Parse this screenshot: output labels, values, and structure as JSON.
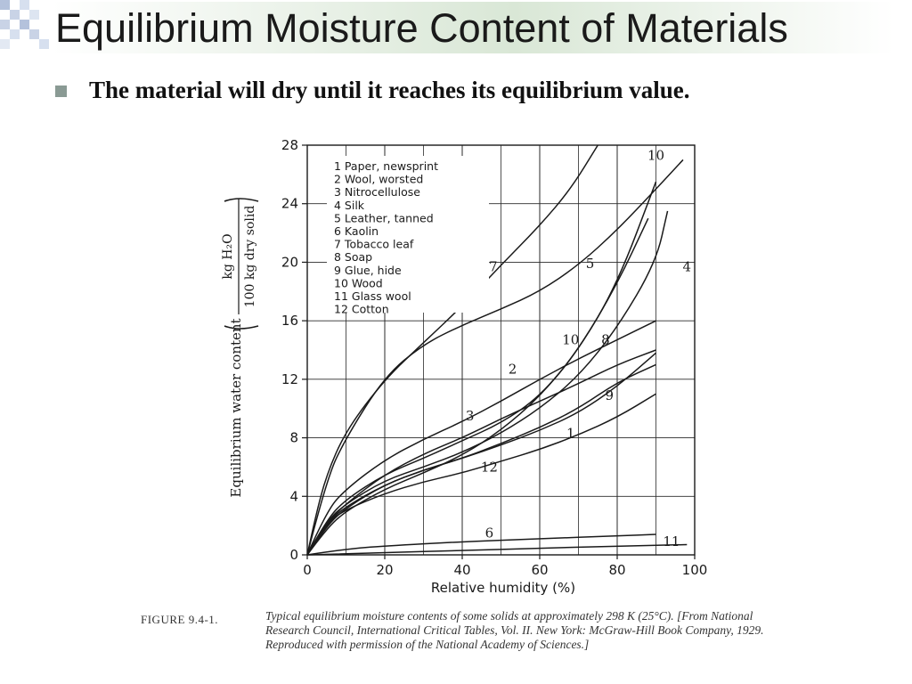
{
  "slide": {
    "title": "Equilibrium Moisture Content of Materials",
    "bullet": "The material will dry until it reaches its equilibrium value."
  },
  "caption": {
    "label": "FIGURE 9.4-1.",
    "text": "Typical equilibrium moisture contents of some solids at approximately 298 K (25°C). [From National Research Council, International Critical Tables, Vol. II. New York: McGraw-Hill Book Company, 1929. Reproduced with permission of the National Academy of Sciences.]"
  },
  "colors": {
    "ink": "#1a1a1a",
    "accent": "#8a9a94",
    "deco": "#b4c2dc"
  },
  "chart_data": {
    "type": "line",
    "xlabel": "Relative humidity (%)",
    "ylabel": "Equilibrium water content",
    "ylabel_unit_num": "kg H₂O",
    "ylabel_unit_den": "100 kg dry solid",
    "xlim": [
      0,
      100
    ],
    "ylim": [
      0,
      28
    ],
    "xticks": [
      0,
      20,
      40,
      60,
      80,
      100
    ],
    "yticks": [
      0,
      4,
      8,
      12,
      16,
      20,
      24,
      28
    ],
    "grid": true,
    "legend": [
      "1  Paper, newsprint",
      "2  Wool, worsted",
      "3  Nitrocellulose",
      "4  Silk",
      "5  Leather, tanned",
      "6  Kaolin",
      "7  Tobacco leaf",
      "8  Soap",
      "9  Glue, hide",
      "10  Wood",
      "11  Glass wool",
      "12  Cotton"
    ],
    "series": [
      {
        "name": "1",
        "label": "1",
        "label_at": [
          68,
          8.0
        ],
        "points": [
          [
            0,
            0
          ],
          [
            5,
            2.2
          ],
          [
            10,
            3.1
          ],
          [
            20,
            4.2
          ],
          [
            30,
            5.0
          ],
          [
            40,
            5.6
          ],
          [
            50,
            6.4
          ],
          [
            60,
            7.2
          ],
          [
            70,
            8.2
          ],
          [
            80,
            9.4
          ],
          [
            90,
            11.0
          ]
        ]
      },
      {
        "name": "2",
        "label": "2",
        "label_at": [
          53,
          12.4
        ],
        "points": [
          [
            0,
            0
          ],
          [
            5,
            3.0
          ],
          [
            10,
            4.5
          ],
          [
            20,
            6.5
          ],
          [
            30,
            7.9
          ],
          [
            40,
            9.1
          ],
          [
            50,
            10.5
          ],
          [
            60,
            12.0
          ],
          [
            70,
            13.4
          ],
          [
            80,
            14.7
          ],
          [
            90,
            16.0
          ]
        ]
      },
      {
        "name": "3",
        "label": "3",
        "label_at": [
          42,
          9.2
        ],
        "points": [
          [
            0,
            0
          ],
          [
            5,
            2.2
          ],
          [
            10,
            3.5
          ],
          [
            20,
            5.5
          ],
          [
            30,
            6.9
          ],
          [
            40,
            8.0
          ],
          [
            50,
            9.3
          ],
          [
            60,
            10.5
          ],
          [
            70,
            11.7
          ],
          [
            80,
            13.0
          ],
          [
            90,
            14.0
          ]
        ]
      },
      {
        "name": "4",
        "label": "4",
        "label_at": [
          98,
          19.4
        ],
        "points": [
          [
            0,
            0
          ],
          [
            5,
            2.3
          ],
          [
            10,
            3.5
          ],
          [
            20,
            5.1
          ],
          [
            30,
            6.0
          ],
          [
            40,
            7.0
          ],
          [
            50,
            8.3
          ],
          [
            60,
            10.0
          ],
          [
            70,
            12.2
          ],
          [
            80,
            15.5
          ],
          [
            90,
            20.0
          ],
          [
            93,
            23.5
          ]
        ]
      },
      {
        "name": "5",
        "label": "5",
        "label_at": [
          73,
          19.6
        ],
        "points": [
          [
            0,
            0
          ],
          [
            5,
            5.2
          ],
          [
            10,
            8.0
          ],
          [
            20,
            12.2
          ],
          [
            30,
            14.4
          ],
          [
            40,
            15.7
          ],
          [
            50,
            16.8
          ],
          [
            60,
            18.0
          ],
          [
            70,
            19.8
          ],
          [
            80,
            22.2
          ],
          [
            90,
            25.0
          ],
          [
            97,
            27.0
          ]
        ]
      },
      {
        "name": "6",
        "label": "6",
        "label_at": [
          47,
          1.2
        ],
        "points": [
          [
            0,
            0
          ],
          [
            10,
            0.4
          ],
          [
            20,
            0.6
          ],
          [
            40,
            0.9
          ],
          [
            60,
            1.1
          ],
          [
            80,
            1.3
          ],
          [
            90,
            1.4
          ]
        ]
      },
      {
        "name": "7",
        "label": "7",
        "label_at": [
          48,
          19.4
        ],
        "points": [
          [
            0,
            0
          ],
          [
            2,
            2.5
          ],
          [
            5,
            5.5
          ],
          [
            10,
            8.5
          ],
          [
            20,
            12.0
          ],
          [
            30,
            14.5
          ],
          [
            40,
            17.0
          ],
          [
            50,
            19.8
          ],
          [
            60,
            22.5
          ],
          [
            68,
            25.0
          ],
          [
            75,
            28.0
          ]
        ]
      },
      {
        "name": "8",
        "label": "8",
        "label_at": [
          77,
          14.4
        ],
        "points": [
          [
            0,
            0
          ],
          [
            5,
            1.8
          ],
          [
            10,
            3.0
          ],
          [
            20,
            4.5
          ],
          [
            30,
            5.6
          ],
          [
            40,
            6.8
          ],
          [
            50,
            8.5
          ],
          [
            60,
            10.8
          ],
          [
            70,
            14.0
          ],
          [
            80,
            18.5
          ],
          [
            88,
            23.0
          ]
        ]
      },
      {
        "name": "9",
        "label": "9",
        "label_at": [
          78,
          10.6
        ],
        "points": [
          [
            0,
            0
          ],
          [
            5,
            2.0
          ],
          [
            10,
            3.2
          ],
          [
            20,
            4.8
          ],
          [
            30,
            5.8
          ],
          [
            40,
            6.6
          ],
          [
            50,
            7.5
          ],
          [
            60,
            8.5
          ],
          [
            70,
            9.7
          ],
          [
            80,
            11.5
          ],
          [
            90,
            13.8
          ]
        ]
      },
      {
        "name": "10",
        "label": "10",
        "label_at": [
          68,
          14.4
        ],
        "points": [
          [
            0,
            0
          ],
          [
            5,
            2.4
          ],
          [
            10,
            3.8
          ],
          [
            20,
            5.5
          ],
          [
            30,
            6.6
          ],
          [
            40,
            7.8
          ],
          [
            50,
            9.0
          ],
          [
            60,
            10.8
          ],
          [
            70,
            14.0
          ],
          [
            80,
            18.5
          ],
          [
            90,
            25.5
          ]
        ]
      },
      {
        "name": "11",
        "label": "11",
        "label_at": [
          94,
          0.6
        ],
        "points": [
          [
            0,
            0
          ],
          [
            20,
            0.15
          ],
          [
            40,
            0.3
          ],
          [
            60,
            0.45
          ],
          [
            80,
            0.6
          ],
          [
            98,
            0.7
          ]
        ]
      },
      {
        "name": "12",
        "label": "12",
        "label_at": [
          47,
          5.7
        ],
        "points": [
          [
            0,
            0
          ],
          [
            5,
            2.2
          ],
          [
            10,
            3.3
          ],
          [
            20,
            4.8
          ],
          [
            30,
            5.8
          ],
          [
            40,
            6.6
          ],
          [
            50,
            7.6
          ],
          [
            60,
            8.7
          ],
          [
            70,
            10.0
          ],
          [
            80,
            11.8
          ],
          [
            90,
            13.0
          ]
        ]
      }
    ],
    "extra_labels": [
      {
        "text": "10",
        "at": [
          90,
          27.0
        ]
      }
    ]
  }
}
